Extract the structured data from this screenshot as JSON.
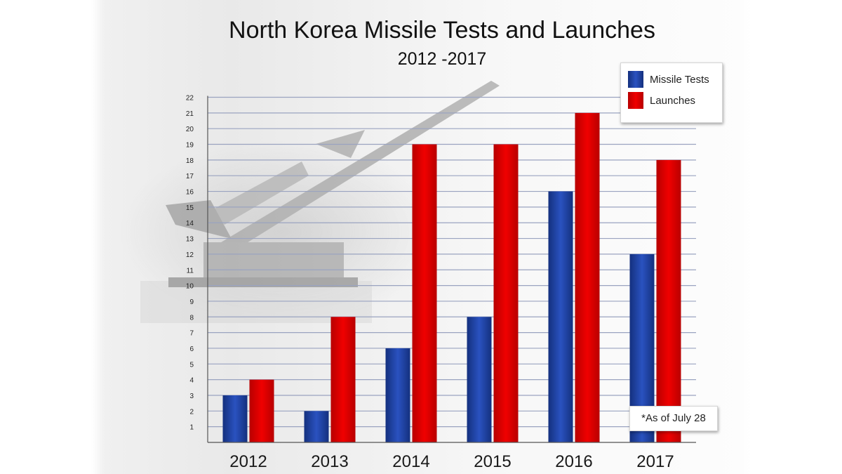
{
  "chart_data": {
    "type": "bar",
    "title": "North Korea Missile Tests and Launches",
    "subtitle": "2012 -2017",
    "categories": [
      "2012",
      "2013",
      "2014",
      "2015",
      "2016",
      "2017"
    ],
    "series": [
      {
        "name": "Missile Tests",
        "values": [
          3,
          2,
          6,
          8,
          16,
          12
        ],
        "color": "#1e3fa0"
      },
      {
        "name": "Launches",
        "values": [
          4,
          8,
          19,
          19,
          21,
          18
        ],
        "color": "#dd0000"
      }
    ],
    "yticks": [
      1,
      2,
      3,
      4,
      5,
      6,
      7,
      8,
      9,
      10,
      11,
      12,
      13,
      14,
      15,
      16,
      17,
      18,
      19,
      20,
      21,
      22
    ],
    "ylim": [
      0,
      22
    ],
    "grid": true,
    "legend_position": "top-right",
    "annotation": "*As of July 28"
  }
}
